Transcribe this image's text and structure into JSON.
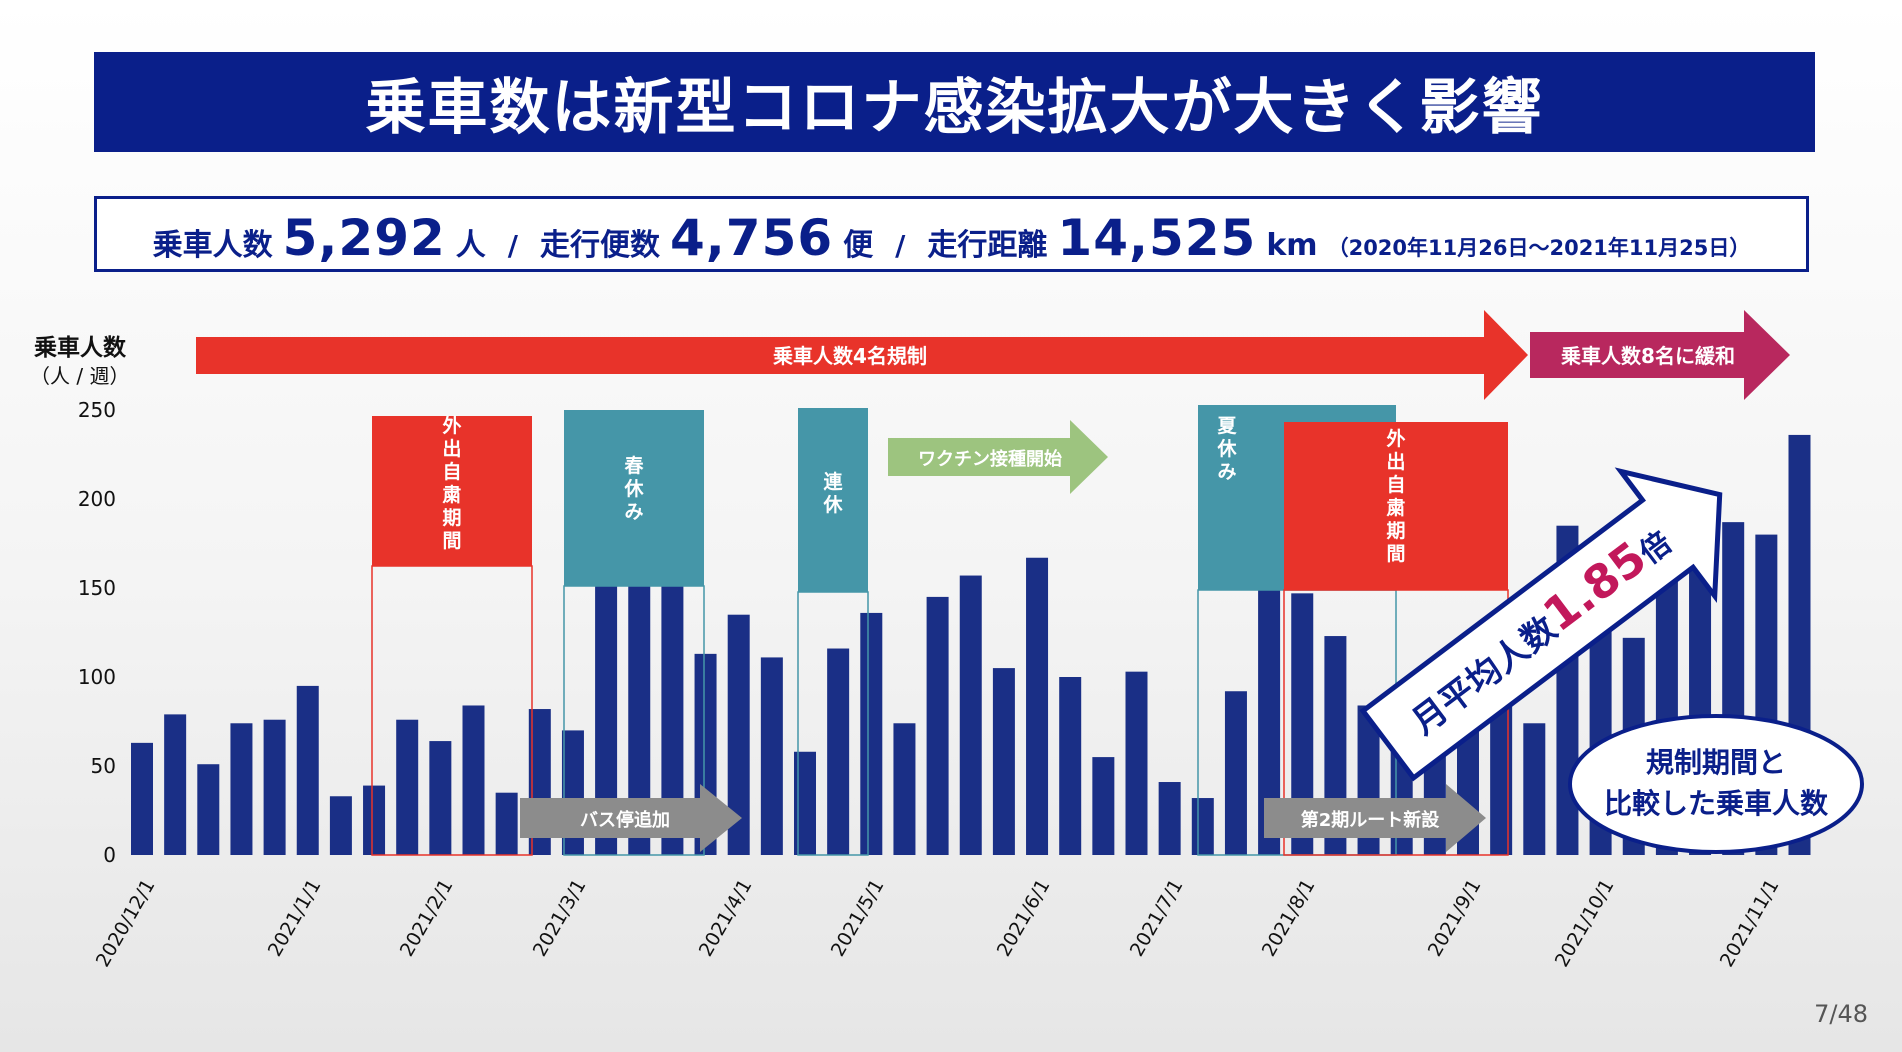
{
  "header": {
    "title": "乗車数は新型コロナ感染拡大が大きく影響"
  },
  "summary": {
    "riders_label": "乗車人数",
    "riders_value": "5,292",
    "riders_unit": "人",
    "separator": "/",
    "trips_label": "走行便数",
    "trips_value": "4,756",
    "trips_unit": "便",
    "distance_label": "走行距離",
    "distance_value": "14,525",
    "distance_unit": "km",
    "period": "（2020年11月26日～2021年11月25日）"
  },
  "axis": {
    "ylabel": "乗車人数",
    "yunit": "（人 / 週）"
  },
  "regulation": {
    "phase1": "乗車人数4名規制",
    "phase2": "乗車人数8名に緩和",
    "phase1_color": "#e8332a",
    "phase2_color": "#b8285e"
  },
  "periods": [
    {
      "label": "外出自粛期間",
      "kind": "restraint",
      "color": "#e8332a"
    },
    {
      "label": "春休み",
      "kind": "holiday",
      "color": "#4596a8"
    },
    {
      "label": "連休",
      "kind": "holiday",
      "color": "#4596a8"
    },
    {
      "label": "夏休み",
      "kind": "holiday",
      "color": "#4596a8"
    },
    {
      "label": "外出自粛期間",
      "kind": "restraint",
      "color": "#e8332a"
    }
  ],
  "events": [
    {
      "label": "ワクチン接種開始",
      "color": "#9dc47f"
    },
    {
      "label": "バス停追加",
      "color": "#8c8c8c"
    },
    {
      "label": "第2期ルート新設",
      "color": "#8c8c8c"
    }
  ],
  "callout": {
    "arrow_prefix": "月平均人数",
    "arrow_value": "1.85",
    "arrow_suffix": "倍",
    "bubble_line1": "規制期間と",
    "bubble_line2": "比較した乗車人数",
    "value_color": "#c2185b"
  },
  "page": {
    "number": "7/48"
  },
  "chart_data": {
    "type": "bar",
    "title": "",
    "xlabel": "",
    "ylabel": "乗車人数",
    "ylim": [
      0,
      250
    ],
    "yticks": [
      0,
      50,
      100,
      150,
      200,
      250
    ],
    "bar_color": "#1a2f86",
    "x_tick_labels": [
      "2020/12/1",
      "2021/1/1",
      "2021/2/1",
      "2021/3/1",
      "2021/4/1",
      "2021/5/1",
      "2021/6/1",
      "2021/7/1",
      "2021/8/1",
      "2021/9/1",
      "2021/10/1",
      "2021/11/1"
    ],
    "values": [
      63,
      79,
      51,
      74,
      76,
      95,
      33,
      39,
      76,
      64,
      84,
      35,
      82,
      70,
      167,
      162,
      168,
      113,
      135,
      111,
      58,
      116,
      136,
      74,
      145,
      157,
      105,
      167,
      100,
      55,
      103,
      41,
      32,
      92,
      159,
      147,
      123,
      84,
      70,
      103,
      80,
      92,
      74,
      185,
      148,
      122,
      172,
      163,
      187,
      180,
      236
    ]
  }
}
